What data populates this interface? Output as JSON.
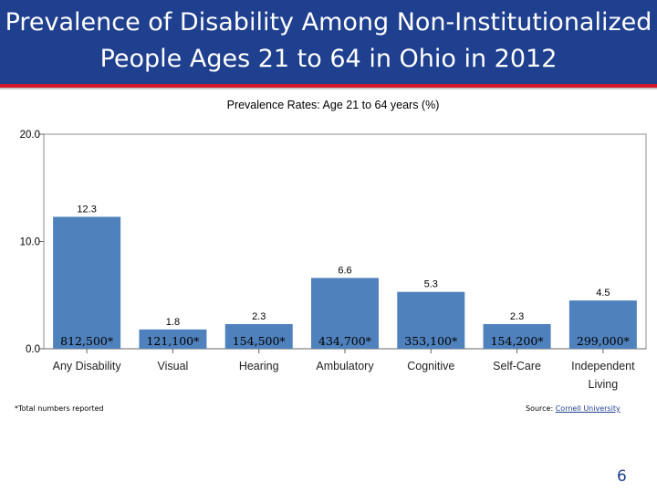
{
  "slide": {
    "title_line1": "Prevalence of Disability Among Non-Institutionalized",
    "title_line2": "People Ages 21 to 64 in Ohio in 2012",
    "footnote": "*Total numbers reported",
    "source_prefix": "Source: ",
    "source_link": "Cornell University",
    "page_number": "6"
  },
  "colors": {
    "bar": "#4f81bd",
    "title_bg": "#1f3f8f",
    "accent_red": "#d0182a"
  },
  "chart_data": {
    "type": "bar",
    "title": "Prevalence Rates: Age 21 to 64 years (%)",
    "categories": [
      "Any Disability",
      "Visual",
      "Hearing",
      "Ambulatory",
      "Cognitive",
      "Self-Care",
      "Independent Living"
    ],
    "values": [
      12.3,
      1.8,
      2.3,
      6.6,
      5.3,
      2.3,
      4.5
    ],
    "value_labels": [
      "12.3",
      "1.8",
      "2.3",
      "6.6",
      "5.3",
      "2.3",
      "4.5"
    ],
    "totals": [
      "812,500*",
      "121,100*",
      "154,500*",
      "434,700*",
      "353,100*",
      "154,200*",
      "299,000*"
    ],
    "ylim": [
      0,
      20
    ],
    "yticks": [
      0,
      10,
      20
    ],
    "ytick_labels": [
      "0.0",
      "10.0",
      "20.0"
    ],
    "xlabel": "",
    "ylabel": "",
    "grid": false
  }
}
